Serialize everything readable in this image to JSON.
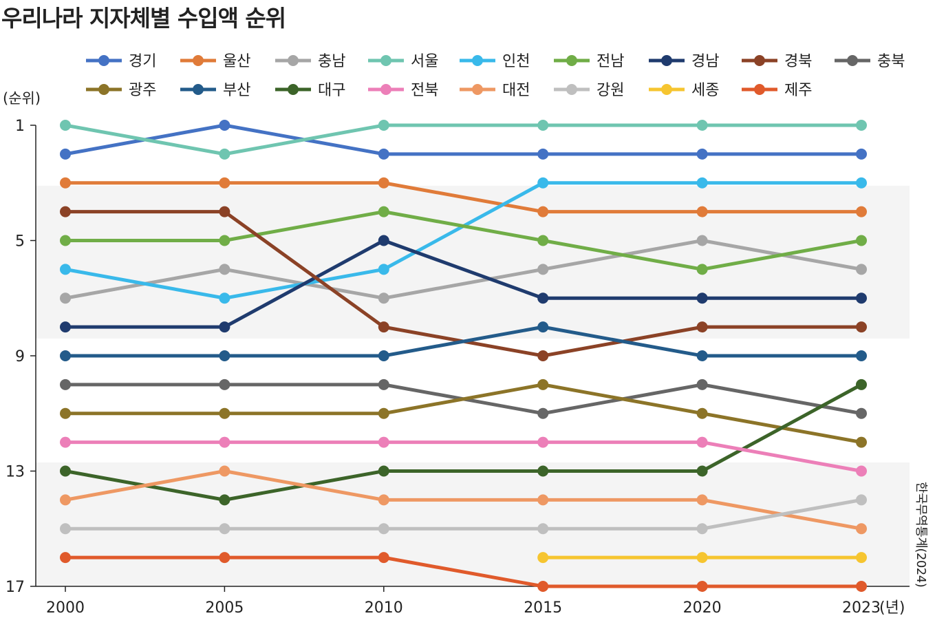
{
  "chart_data": {
    "type": "line",
    "title": "우리나라 지자체별 수입액 순위",
    "ylabel": "(순위)",
    "xunit": "(년)",
    "source": "한국무역통계(2024)",
    "x": [
      "2000",
      "2005",
      "2010",
      "2015",
      "2020",
      "2023"
    ],
    "y_ticks": [
      "1",
      "5",
      "9",
      "13",
      "17"
    ],
    "ylim": [
      17,
      1
    ],
    "y_inverted": true,
    "grid": false,
    "shaded_bands": [
      [
        4,
        8
      ],
      [
        13,
        17
      ]
    ],
    "legend_position": "top",
    "series": [
      {
        "name": "경기",
        "color": "#4472c4",
        "values": [
          2,
          1,
          2,
          2,
          2,
          2
        ]
      },
      {
        "name": "울산",
        "color": "#e07b39",
        "values": [
          3,
          3,
          3,
          4,
          4,
          4
        ]
      },
      {
        "name": "충남",
        "color": "#a6a6a6",
        "values": [
          7,
          6,
          7,
          6,
          5,
          6
        ]
      },
      {
        "name": "서울",
        "color": "#6fc5b0",
        "values": [
          1,
          2,
          1,
          1,
          1,
          1
        ]
      },
      {
        "name": "인천",
        "color": "#39b9ea",
        "values": [
          6,
          7,
          6,
          3,
          3,
          3
        ]
      },
      {
        "name": "전남",
        "color": "#70ad47",
        "values": [
          5,
          5,
          4,
          5,
          6,
          5
        ]
      },
      {
        "name": "경남",
        "color": "#1f3b6e",
        "values": [
          8,
          8,
          5,
          7,
          7,
          7
        ]
      },
      {
        "name": "경북",
        "color": "#8b4226",
        "values": [
          4,
          4,
          8,
          9,
          8,
          8
        ]
      },
      {
        "name": "충북",
        "color": "#666666",
        "values": [
          10,
          10,
          10,
          11,
          10,
          11
        ]
      },
      {
        "name": "광주",
        "color": "#8c7428",
        "values": [
          11,
          11,
          11,
          10,
          11,
          12
        ]
      },
      {
        "name": "부산",
        "color": "#235b8a",
        "values": [
          9,
          9,
          9,
          8,
          9,
          9
        ]
      },
      {
        "name": "대구",
        "color": "#3c6429",
        "values": [
          13,
          14,
          13,
          13,
          13,
          10
        ]
      },
      {
        "name": "전북",
        "color": "#ec7fb8",
        "values": [
          12,
          12,
          12,
          12,
          12,
          13
        ]
      },
      {
        "name": "대전",
        "color": "#ee9863",
        "values": [
          14,
          13,
          14,
          14,
          14,
          15
        ]
      },
      {
        "name": "강원",
        "color": "#bfbfbf",
        "values": [
          15,
          15,
          15,
          15,
          15,
          14
        ]
      },
      {
        "name": "세종",
        "color": "#f6c530",
        "values": [
          null,
          null,
          null,
          16,
          16,
          16
        ]
      },
      {
        "name": "제주",
        "color": "#e05a2b",
        "values": [
          16,
          16,
          16,
          17,
          17,
          17
        ]
      }
    ]
  }
}
